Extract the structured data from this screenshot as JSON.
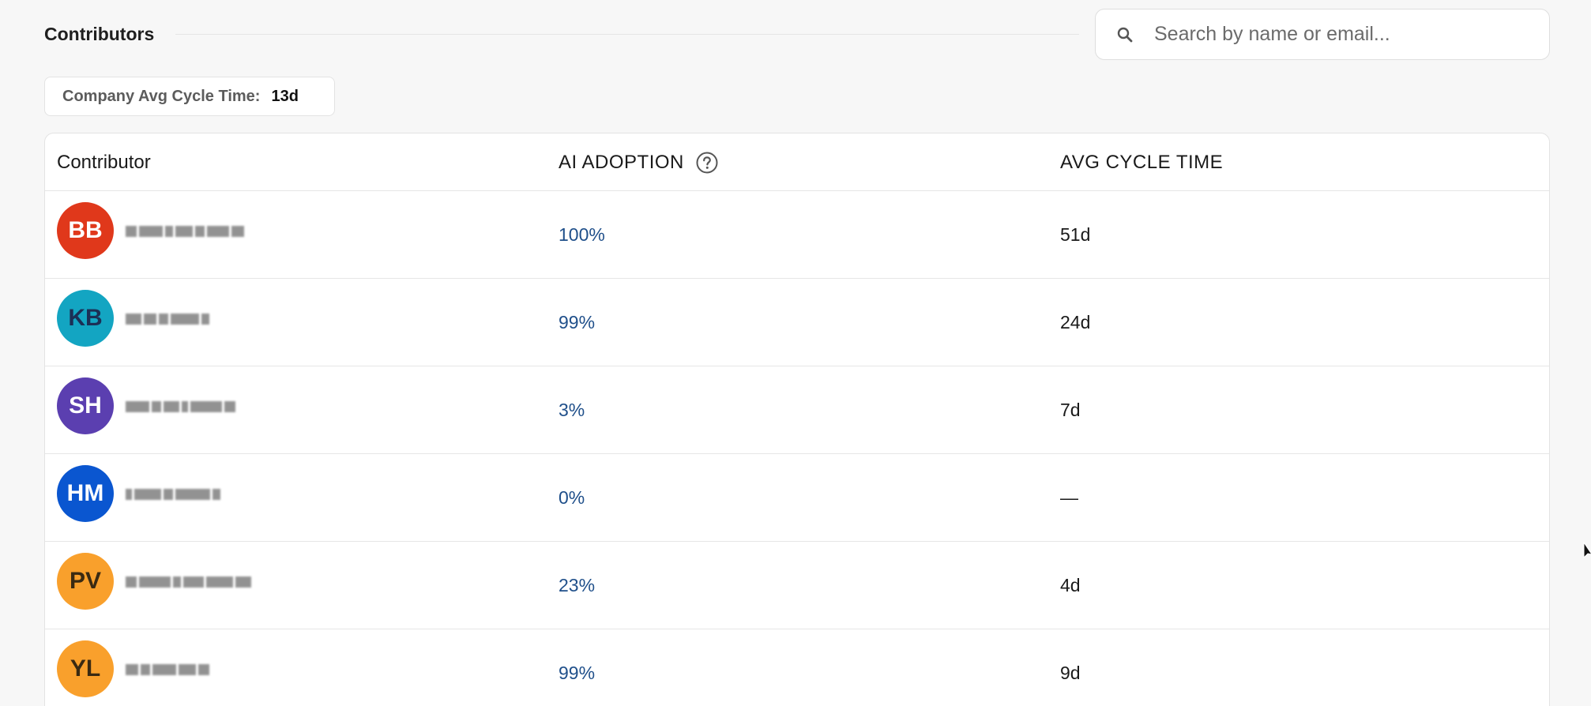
{
  "section": {
    "title": "Contributors"
  },
  "search": {
    "placeholder": "Search by name or email...",
    "icon": "search-icon"
  },
  "metric": {
    "label": "Company Avg Cycle Time:",
    "value": "13d"
  },
  "table": {
    "columns": {
      "contributor": "Contributor",
      "ai_adoption": "AI ADOPTION",
      "avg_cycle_time": "AVG CYCLE TIME"
    },
    "rows": [
      {
        "initials": "BB",
        "avatar_bg": "#e0381b",
        "avatar_fg": "#ffffff",
        "ai": "100%",
        "cycle": "51d"
      },
      {
        "initials": "KB",
        "avatar_bg": "#13a5c2",
        "avatar_fg": "#1c2f55",
        "ai": "99%",
        "cycle": "24d"
      },
      {
        "initials": "SH",
        "avatar_bg": "#5b3fb0",
        "avatar_fg": "#ffffff",
        "ai": "3%",
        "cycle": "7d"
      },
      {
        "initials": "HM",
        "avatar_bg": "#0a56d0",
        "avatar_fg": "#ffffff",
        "ai": "0%",
        "cycle": "—"
      },
      {
        "initials": "PV",
        "avatar_bg": "#f9a02c",
        "avatar_fg": "#3a2a12",
        "ai": "23%",
        "cycle": "4d"
      },
      {
        "initials": "YL",
        "avatar_bg": "#f9a02c",
        "avatar_fg": "#3a2a12",
        "ai": "99%",
        "cycle": "9d"
      }
    ]
  },
  "colors": {
    "link": "#1f4f8a",
    "border": "#e6e6e6",
    "background": "#f7f7f7"
  }
}
